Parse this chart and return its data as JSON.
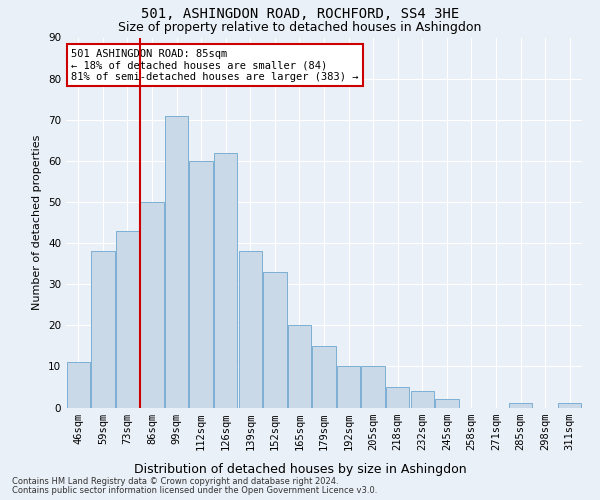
{
  "title": "501, ASHINGDON ROAD, ROCHFORD, SS4 3HE",
  "subtitle": "Size of property relative to detached houses in Ashingdon",
  "xlabel": "Distribution of detached houses by size in Ashingdon",
  "ylabel": "Number of detached properties",
  "categories": [
    "46sqm",
    "59sqm",
    "73sqm",
    "86sqm",
    "99sqm",
    "112sqm",
    "126sqm",
    "139sqm",
    "152sqm",
    "165sqm",
    "179sqm",
    "192sqm",
    "205sqm",
    "218sqm",
    "232sqm",
    "245sqm",
    "258sqm",
    "271sqm",
    "285sqm",
    "298sqm",
    "311sqm"
  ],
  "values": [
    11,
    38,
    43,
    50,
    71,
    60,
    62,
    38,
    33,
    20,
    15,
    10,
    10,
    5,
    4,
    2,
    0,
    0,
    1,
    0,
    1
  ],
  "bar_color": "#c9d9e8",
  "bar_edge_color": "#7bafd4",
  "background_color": "#eaf0f7",
  "grid_color": "#ffffff",
  "red_line_index": 3,
  "annotation_text": "501 ASHINGDON ROAD: 85sqm\n← 18% of detached houses are smaller (84)\n81% of semi-detached houses are larger (383) →",
  "annotation_box_facecolor": "#ffffff",
  "annotation_box_edgecolor": "#cc0000",
  "footer_line1": "Contains HM Land Registry data © Crown copyright and database right 2024.",
  "footer_line2": "Contains public sector information licensed under the Open Government Licence v3.0.",
  "ylim": [
    0,
    90
  ],
  "yticks": [
    0,
    10,
    20,
    30,
    40,
    50,
    60,
    70,
    80,
    90
  ],
  "title_fontsize": 10,
  "subtitle_fontsize": 9,
  "axis_label_fontsize": 8,
  "tick_fontsize": 7.5,
  "ylabel_fontsize": 8,
  "annotation_fontsize": 7.5,
  "footer_fontsize": 6
}
